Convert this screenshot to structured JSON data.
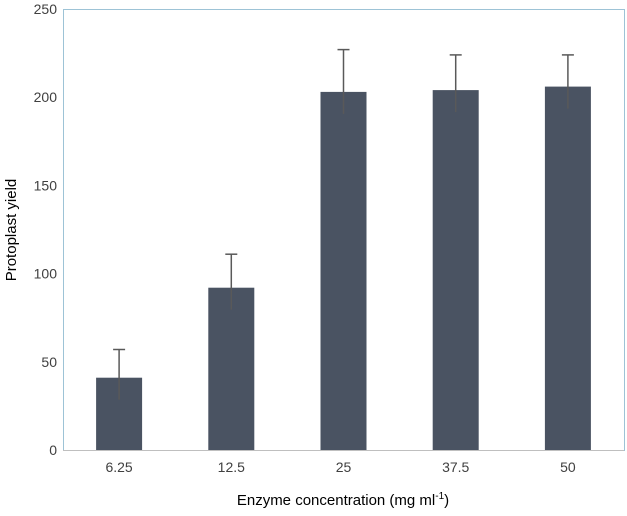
{
  "chart_data": {
    "type": "bar",
    "title": "",
    "categories": [
      "6.25",
      "12.5",
      "25",
      "37.5",
      "50"
    ],
    "values": [
      41,
      92,
      203,
      204,
      206
    ],
    "error_upper": [
      16,
      19,
      24,
      20,
      18
    ],
    "xlabel_main": "Enzyme concentration (mg ml",
    "xlabel_sup": "-1",
    "xlabel_tail": ")",
    "ylabel": "Protoplast  yield",
    "ylim": [
      0,
      250
    ],
    "yticks": [
      "0",
      "50",
      "100",
      "150",
      "200",
      "250"
    ],
    "ytick_values": [
      0,
      50,
      100,
      150,
      200,
      250
    ],
    "grid": false,
    "legend": "none",
    "colors": {
      "bar": "#4a5362",
      "error_bar": "#595959",
      "plot_border": "#9dc3d6",
      "axis_line": "#bfbfbf",
      "tick_text": "#404040"
    }
  }
}
